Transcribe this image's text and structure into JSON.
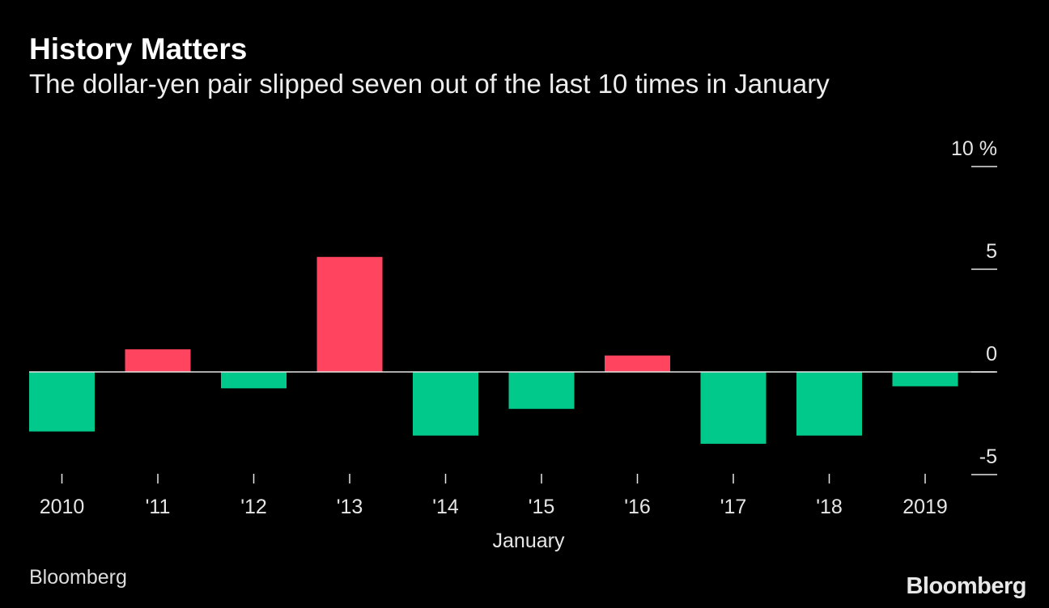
{
  "header": {
    "title": "History Matters",
    "subtitle": "The dollar-yen pair slipped seven out of the last 10 times in January"
  },
  "footer": {
    "source": "Bloomberg",
    "logo_text": "Bloomberg"
  },
  "colors": {
    "background": "#000000",
    "positive": "#ff445f",
    "negative": "#00c98b",
    "axis": "#e6e6e6"
  },
  "chart_data": {
    "type": "bar",
    "title": "History Matters",
    "subtitle": "The dollar-yen pair slipped seven out of the last 10 times in January",
    "xlabel": "January",
    "ylabel": "",
    "y_unit": "%",
    "ylim": [
      -5,
      10
    ],
    "y_ticks": [
      10,
      5,
      0,
      -5
    ],
    "y_tick_labels": [
      "10 %",
      "5",
      "0",
      "-5"
    ],
    "y_axis_position": "right",
    "grid": false,
    "categories": [
      "2010",
      "'11",
      "'12",
      "'13",
      "'14",
      "'15",
      "'16",
      "'17",
      "'18",
      "2019"
    ],
    "values": [
      -2.9,
      1.1,
      -0.8,
      5.6,
      -3.1,
      -1.8,
      0.8,
      -3.5,
      -3.1,
      -0.7
    ]
  }
}
